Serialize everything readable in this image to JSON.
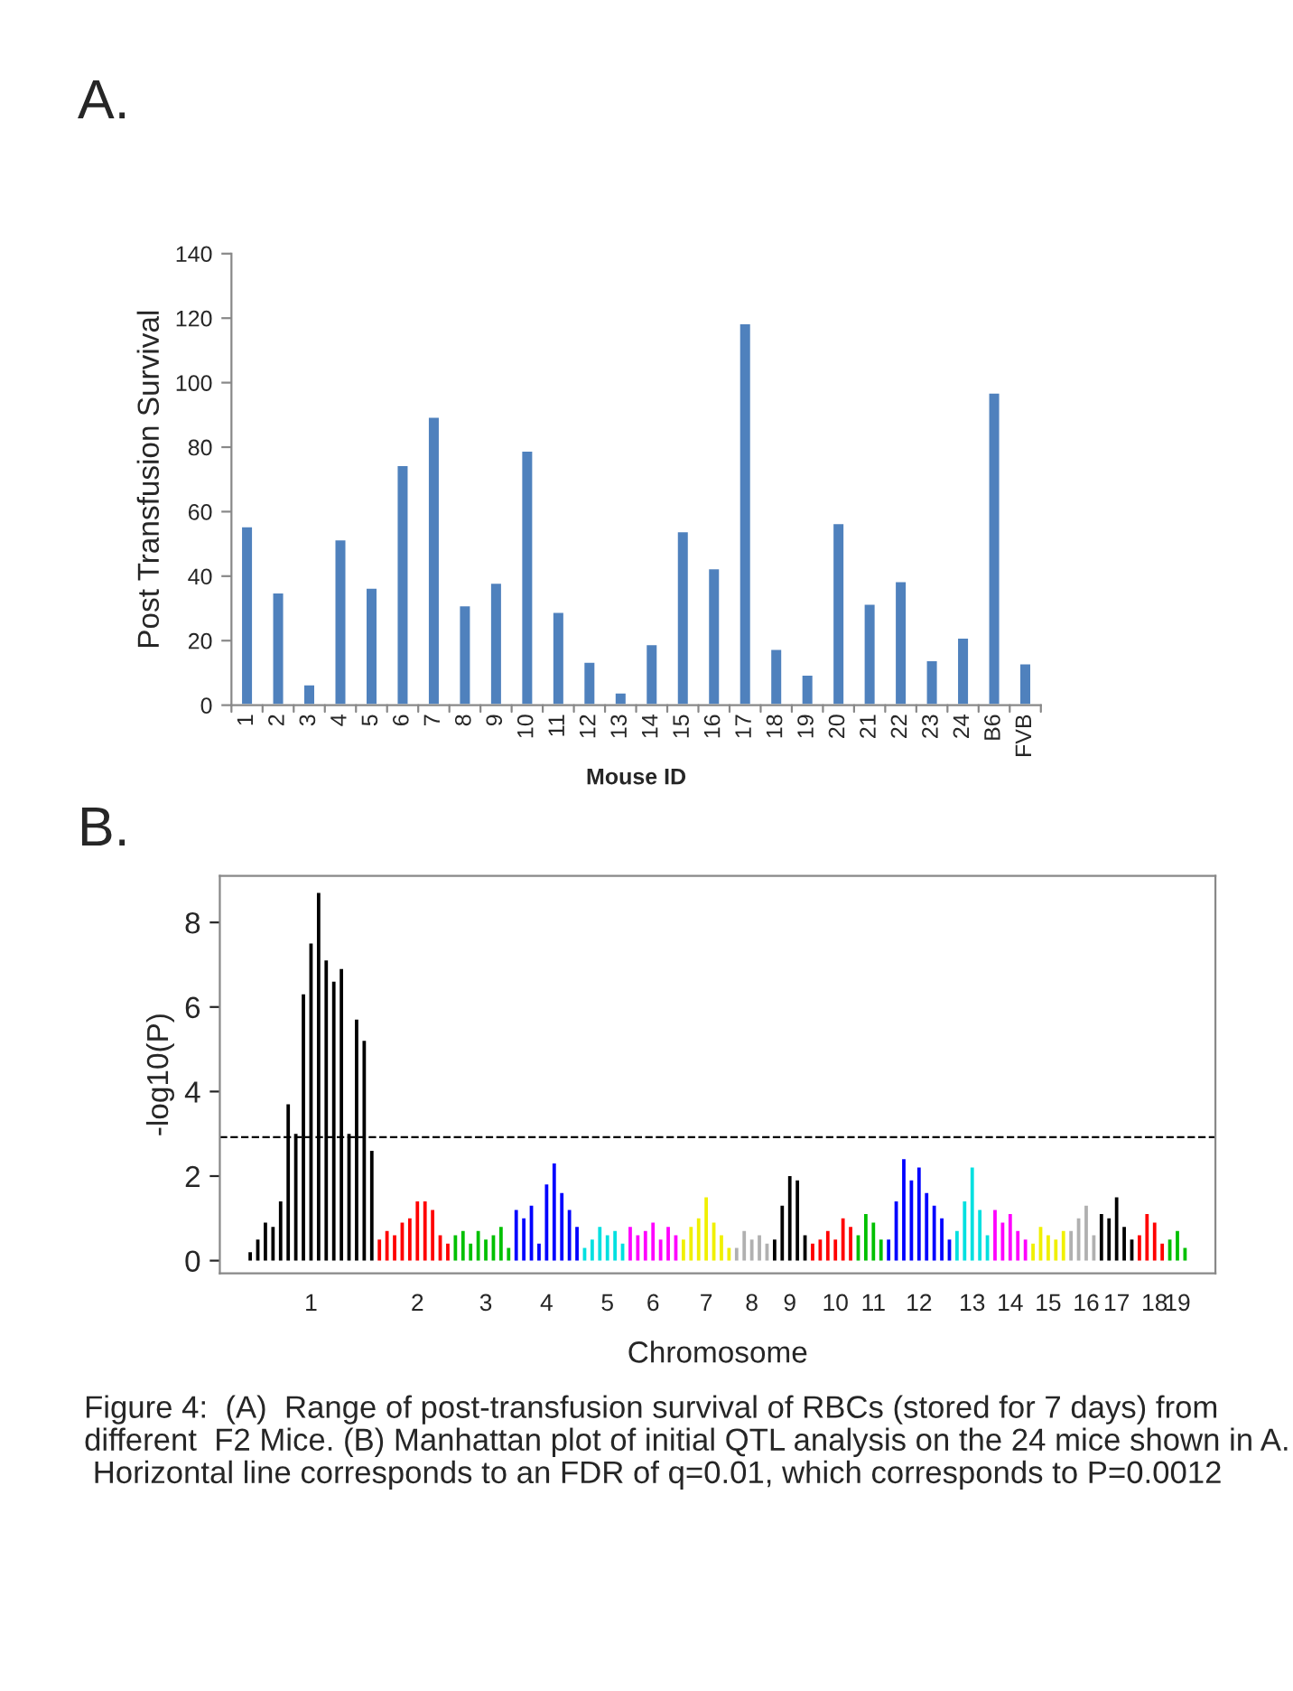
{
  "chart_data": [
    {
      "type": "bar",
      "title": "A.",
      "xlabel": "Mouse ID",
      "ylabel": "Post Transfusion Survival",
      "categories": [
        "1",
        "2",
        "3",
        "4",
        "5",
        "6",
        "7",
        "8",
        "9",
        "10",
        "11",
        "12",
        "13",
        "14",
        "15",
        "16",
        "17",
        "18",
        "19",
        "20",
        "21",
        "22",
        "23",
        "24",
        "B6",
        "FVB"
      ],
      "series": [
        {
          "color": "#4f81bd",
          "values": [
            55.5,
            35,
            6.5,
            51.5,
            36.5,
            74.5,
            89.5,
            31,
            38,
            79,
            29,
            13.5,
            4,
            19,
            54,
            42.5,
            118.5,
            17.5,
            9.5,
            56.5,
            31.5,
            38.5,
            14,
            21,
            97,
            13
          ]
        }
      ],
      "ylim": [
        0,
        140
      ],
      "yticks": [
        0,
        20,
        40,
        60,
        80,
        100,
        120,
        140
      ]
    },
    {
      "type": "bar",
      "title": "B.",
      "xlabel": "Chromosome",
      "ylabel": "-log10(P)",
      "categories": [
        null,
        null,
        null,
        null,
        null,
        null,
        null,
        null,
        "1",
        null,
        null,
        null,
        null,
        null,
        null,
        null,
        null,
        null,
        null,
        null,
        null,
        null,
        "2",
        null,
        null,
        null,
        null,
        null,
        null,
        null,
        null,
        "3",
        null,
        null,
        null,
        null,
        null,
        null,
        null,
        "4",
        null,
        null,
        null,
        null,
        null,
        null,
        null,
        "5",
        null,
        null,
        null,
        null,
        null,
        "6",
        null,
        null,
        null,
        null,
        null,
        null,
        "7",
        null,
        null,
        null,
        null,
        null,
        "8",
        null,
        null,
        null,
        null,
        "9",
        null,
        null,
        null,
        null,
        null,
        "10",
        null,
        null,
        null,
        null,
        "11",
        null,
        null,
        null,
        null,
        null,
        "12",
        null,
        null,
        null,
        null,
        null,
        null,
        "13",
        null,
        null,
        null,
        null,
        "14",
        null,
        null,
        null,
        null,
        "15",
        null,
        null,
        null,
        null,
        "16",
        null,
        null,
        null,
        "17",
        null,
        null,
        null,
        null,
        "18",
        null,
        null,
        "19",
        null
      ],
      "values": [
        0.2,
        0.5,
        0.9,
        0.8,
        1.4,
        3.7,
        3.0,
        6.3,
        7.5,
        8.7,
        7.1,
        6.6,
        6.9,
        3.0,
        5.7,
        5.2,
        2.6,
        0.5,
        0.7,
        0.6,
        0.9,
        1.0,
        1.4,
        1.4,
        1.2,
        0.6,
        0.4,
        0.6,
        0.7,
        0.4,
        0.7,
        0.5,
        0.6,
        0.8,
        0.3,
        1.2,
        1.0,
        1.3,
        0.4,
        1.8,
        2.3,
        1.6,
        1.2,
        0.8,
        0.3,
        0.5,
        0.8,
        0.6,
        0.7,
        0.4,
        0.8,
        0.6,
        0.7,
        0.9,
        0.5,
        0.8,
        0.6,
        0.5,
        0.8,
        1.0,
        1.5,
        0.9,
        0.6,
        0.3,
        0.3,
        0.7,
        0.5,
        0.6,
        0.4,
        0.5,
        1.3,
        2.0,
        1.9,
        0.6,
        0.4,
        0.5,
        0.7,
        0.5,
        1.0,
        0.8,
        0.6,
        1.1,
        0.9,
        0.5,
        0.5,
        1.4,
        2.4,
        1.9,
        2.2,
        1.6,
        1.3,
        1.0,
        0.5,
        0.7,
        1.4,
        2.2,
        1.2,
        0.6,
        1.2,
        0.9,
        1.1,
        0.7,
        0.5,
        0.4,
        0.8,
        0.6,
        0.5,
        0.7,
        0.7,
        1.0,
        1.3,
        0.6,
        1.1,
        1.0,
        1.5,
        0.8,
        0.5,
        0.6,
        1.1,
        0.9,
        0.4,
        0.5,
        0.7,
        0.3
      ],
      "colors": [
        "#000000",
        "#000000",
        "#000000",
        "#000000",
        "#000000",
        "#000000",
        "#000000",
        "#000000",
        "#000000",
        "#000000",
        "#000000",
        "#000000",
        "#000000",
        "#000000",
        "#000000",
        "#000000",
        "#000000",
        "#ff0000",
        "#ff0000",
        "#ff0000",
        "#ff0000",
        "#ff0000",
        "#ff0000",
        "#ff0000",
        "#ff0000",
        "#ff0000",
        "#ff0000",
        "#00c000",
        "#00c000",
        "#00c000",
        "#00c000",
        "#00c000",
        "#00c000",
        "#00c000",
        "#00c000",
        "#0000ff",
        "#0000ff",
        "#0000ff",
        "#0000ff",
        "#0000ff",
        "#0000ff",
        "#0000ff",
        "#0000ff",
        "#0000ff",
        "#00e0e0",
        "#00e0e0",
        "#00e0e0",
        "#00e0e0",
        "#00e0e0",
        "#00e0e0",
        "#ff00ff",
        "#ff00ff",
        "#ff00ff",
        "#ff00ff",
        "#ff00ff",
        "#ff00ff",
        "#ff00ff",
        "#f0f000",
        "#f0f000",
        "#f0f000",
        "#f0f000",
        "#f0f000",
        "#f0f000",
        "#f0f000",
        "#b0b0b0",
        "#b0b0b0",
        "#b0b0b0",
        "#b0b0b0",
        "#b0b0b0",
        "#000000",
        "#000000",
        "#000000",
        "#000000",
        "#000000",
        "#ff0000",
        "#ff0000",
        "#ff0000",
        "#ff0000",
        "#ff0000",
        "#ff0000",
        "#00c000",
        "#00c000",
        "#00c000",
        "#00c000",
        "#0000ff",
        "#0000ff",
        "#0000ff",
        "#0000ff",
        "#0000ff",
        "#0000ff",
        "#0000ff",
        "#0000ff",
        "#0000ff",
        "#00e0e0",
        "#00e0e0",
        "#00e0e0",
        "#00e0e0",
        "#00e0e0",
        "#ff00ff",
        "#ff00ff",
        "#ff00ff",
        "#ff00ff",
        "#ff00ff",
        "#f0f000",
        "#f0f000",
        "#f0f000",
        "#f0f000",
        "#f0f000",
        "#b0b0b0",
        "#b0b0b0",
        "#b0b0b0",
        "#b0b0b0",
        "#000000",
        "#000000",
        "#000000",
        "#000000",
        "#000000",
        "#ff0000",
        "#ff0000",
        "#ff0000",
        "#ff0000",
        "#00c000",
        "#00c000",
        "#00c000"
      ],
      "ylim": [
        -0.3,
        9.1
      ],
      "yticks": [
        0,
        2,
        4,
        6,
        8
      ],
      "ref_lines": [
        {
          "axis": "y",
          "value": 2.92,
          "color": "#000000",
          "line_style": "dashed"
        }
      ],
      "annotations": [
        "Figure 4:  (A)  Range of post-transfusion survival of RBCs (stored for 7 days) from different  F2 Mice. (B) Manhattan plot of initial QTL analysis on the 24 mice shown in A.  Horizontal line corresponds to an FDR of q=0.01, which corresponds to P=0.0012"
      ]
    }
  ]
}
